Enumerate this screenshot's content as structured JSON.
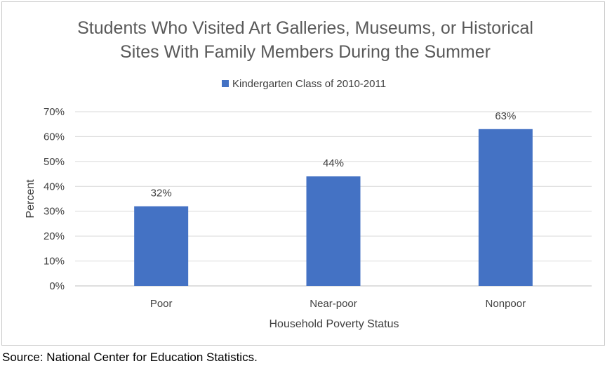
{
  "chart_data": {
    "type": "bar",
    "title_lines": [
      "Students Who Visited Art Galleries, Museums, or Historical",
      "Sites With Family Members During the Summer"
    ],
    "legend": "Kindergarten Class of 2010-2011",
    "legend_position": "top",
    "categories": [
      "Poor",
      "Near-poor",
      "Nonpoor"
    ],
    "series": [
      {
        "name": "Kindergarten Class of 2010-2011",
        "values": [
          32,
          44,
          63
        ]
      }
    ],
    "data_labels": [
      "32%",
      "44%",
      "63%"
    ],
    "xlabel": "Household Poverty Status",
    "ylabel": "Percent",
    "ylim": [
      0,
      70
    ],
    "yticks": [
      0,
      10,
      20,
      30,
      40,
      50,
      60,
      70
    ],
    "ytick_labels": [
      "0%",
      "10%",
      "20%",
      "30%",
      "40%",
      "50%",
      "60%",
      "70%"
    ],
    "grid": true,
    "colors": {
      "bar": "#4472c4",
      "grid": "#d9d9d9",
      "title": "#595959",
      "text": "#404040"
    }
  },
  "source": "Source: National Center for Education Statistics."
}
